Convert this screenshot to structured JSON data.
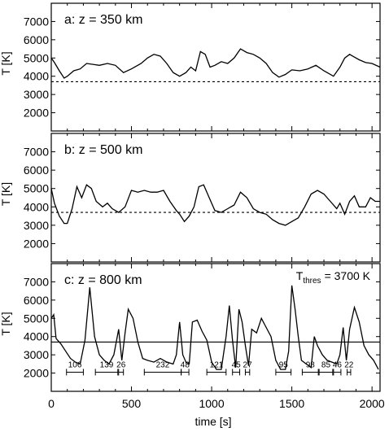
{
  "chart_data": {
    "type": "line",
    "xlabel": "time [s]",
    "ylabel": "T [K]",
    "x_ticks": [
      0,
      500,
      1000,
      1500,
      2000
    ],
    "xlim": [
      0,
      2050
    ],
    "threshold": {
      "label_T": "T",
      "label_sub": "thres",
      "label_rest": "= 3700 K",
      "value": 3700
    },
    "panels": [
      {
        "label": "a:  z = 350 km",
        "ylim": [
          1000,
          8000
        ],
        "y_ticks": [
          2000,
          3000,
          4000,
          5000,
          6000,
          7000
        ],
        "threshold_style": "dashed",
        "series": {
          "x": [
            0,
            20,
            50,
            80,
            100,
            140,
            180,
            220,
            260,
            300,
            350,
            400,
            450,
            500,
            560,
            600,
            640,
            680,
            720,
            760,
            800,
            840,
            870,
            900,
            930,
            960,
            990,
            1020,
            1060,
            1100,
            1140,
            1180,
            1220,
            1260,
            1300,
            1340,
            1380,
            1420,
            1460,
            1500,
            1550,
            1600,
            1650,
            1700,
            1760,
            1800,
            1830,
            1860,
            1890,
            1920,
            1960,
            2000,
            2050
          ],
          "y": [
            5000,
            4750,
            4300,
            3900,
            4000,
            4300,
            4400,
            4700,
            4650,
            4600,
            4700,
            4600,
            4200,
            4400,
            4700,
            5000,
            5200,
            5100,
            4700,
            4200,
            4000,
            4200,
            4500,
            4300,
            5350,
            5200,
            4500,
            4600,
            4800,
            4700,
            5000,
            5500,
            5300,
            5200,
            5000,
            4700,
            4200,
            3950,
            4100,
            4350,
            4300,
            4400,
            4600,
            4300,
            4000,
            4500,
            5000,
            5200,
            5050,
            4900,
            4750,
            4700,
            4500
          ]
        }
      },
      {
        "label": "b:  z = 500 km",
        "ylim": [
          1000,
          8000
        ],
        "y_ticks": [
          2000,
          3000,
          4000,
          5000,
          6000,
          7000
        ],
        "threshold_style": "dashed",
        "series": {
          "x": [
            0,
            20,
            50,
            80,
            100,
            130,
            160,
            190,
            220,
            250,
            280,
            320,
            350,
            380,
            420,
            460,
            500,
            540,
            580,
            620,
            660,
            700,
            740,
            780,
            800,
            830,
            860,
            890,
            920,
            950,
            980,
            1020,
            1060,
            1100,
            1140,
            1180,
            1220,
            1260,
            1300,
            1340,
            1380,
            1420,
            1460,
            1500,
            1540,
            1580,
            1620,
            1660,
            1700,
            1740,
            1780,
            1800,
            1830,
            1860,
            1890,
            1920,
            1960,
            1990,
            2020,
            2050
          ],
          "y": [
            5000,
            4200,
            3500,
            3100,
            3100,
            3900,
            5100,
            4500,
            5200,
            5000,
            4300,
            4000,
            4200,
            3900,
            3700,
            4000,
            4900,
            4800,
            4900,
            4800,
            4800,
            4900,
            4300,
            3800,
            3600,
            3200,
            3500,
            4000,
            5100,
            5200,
            4600,
            3800,
            3700,
            3900,
            4100,
            4800,
            4500,
            3900,
            3700,
            3600,
            3300,
            3100,
            3000,
            3200,
            3400,
            4000,
            4700,
            4900,
            4700,
            4300,
            3900,
            4200,
            3600,
            4300,
            4600,
            4000,
            4000,
            4500,
            4300,
            4300
          ]
        }
      },
      {
        "label": "c:  z = 800 km",
        "ylim": [
          1000,
          8000
        ],
        "y_ticks": [
          2000,
          3000,
          4000,
          5000,
          6000,
          7000
        ],
        "threshold_style": "solid",
        "series": {
          "x": [
            0,
            15,
            30,
            60,
            90,
            120,
            150,
            180,
            210,
            240,
            270,
            300,
            330,
            360,
            390,
            420,
            440,
            460,
            480,
            510,
            540,
            570,
            600,
            640,
            680,
            720,
            760,
            780,
            800,
            820,
            840,
            860,
            880,
            910,
            940,
            970,
            1000,
            1030,
            1060,
            1090,
            1110,
            1130,
            1150,
            1170,
            1190,
            1210,
            1230,
            1250,
            1280,
            1310,
            1340,
            1370,
            1400,
            1430,
            1460,
            1480,
            1500,
            1520,
            1540,
            1560,
            1590,
            1620,
            1640,
            1660,
            1690,
            1720,
            1750,
            1780,
            1800,
            1820,
            1840,
            1860,
            1890,
            1920,
            1950,
            1980,
            2010,
            2040
          ],
          "y": [
            5000,
            5200,
            3900,
            3600,
            3200,
            2800,
            2600,
            2500,
            3800,
            6700,
            4000,
            3000,
            2700,
            2500,
            3000,
            4400,
            2700,
            4200,
            5500,
            5000,
            3700,
            2800,
            2700,
            2600,
            2800,
            2600,
            2500,
            3000,
            4800,
            3000,
            2600,
            2500,
            4800,
            4900,
            4300,
            3800,
            2600,
            2200,
            2200,
            4000,
            5700,
            3800,
            2300,
            5500,
            4800,
            3500,
            2400,
            4400,
            4200,
            5000,
            4500,
            4000,
            2700,
            2200,
            2200,
            3200,
            6800,
            5500,
            4000,
            2700,
            2500,
            2300,
            4000,
            3500,
            3000,
            2700,
            2600,
            2500,
            3000,
            4500,
            2700,
            4400,
            5600,
            4800,
            3500,
            3000,
            2700,
            2200
          ]
        },
        "segments": [
          {
            "x0": 95,
            "x1": 200,
            "label": "106",
            "kind": "long"
          },
          {
            "x0": 275,
            "x1": 415,
            "label": "139",
            "kind": "long"
          },
          {
            "x0": 420,
            "x1": 450,
            "label": "26",
            "kind": "short"
          },
          {
            "x0": 580,
            "x1": 810,
            "label": "232",
            "kind": "long"
          },
          {
            "x0": 810,
            "x1": 858,
            "label": "48",
            "kind": "short"
          },
          {
            "x0": 970,
            "x1": 1090,
            "label": "121",
            "kind": "long"
          },
          {
            "x0": 1130,
            "x1": 1175,
            "label": "45",
            "kind": "short"
          },
          {
            "x0": 1210,
            "x1": 1237,
            "label": "27",
            "kind": "short"
          },
          {
            "x0": 1400,
            "x1": 1495,
            "label": "95",
            "kind": "long"
          },
          {
            "x0": 1565,
            "x1": 1665,
            "label": "98",
            "kind": "long"
          },
          {
            "x0": 1670,
            "x1": 1755,
            "label": "85",
            "kind": "long"
          },
          {
            "x0": 1760,
            "x1": 1806,
            "label": "46",
            "kind": "short"
          },
          {
            "x0": 1845,
            "x1": 1867,
            "label": "22",
            "kind": "short"
          }
        ]
      }
    ]
  }
}
